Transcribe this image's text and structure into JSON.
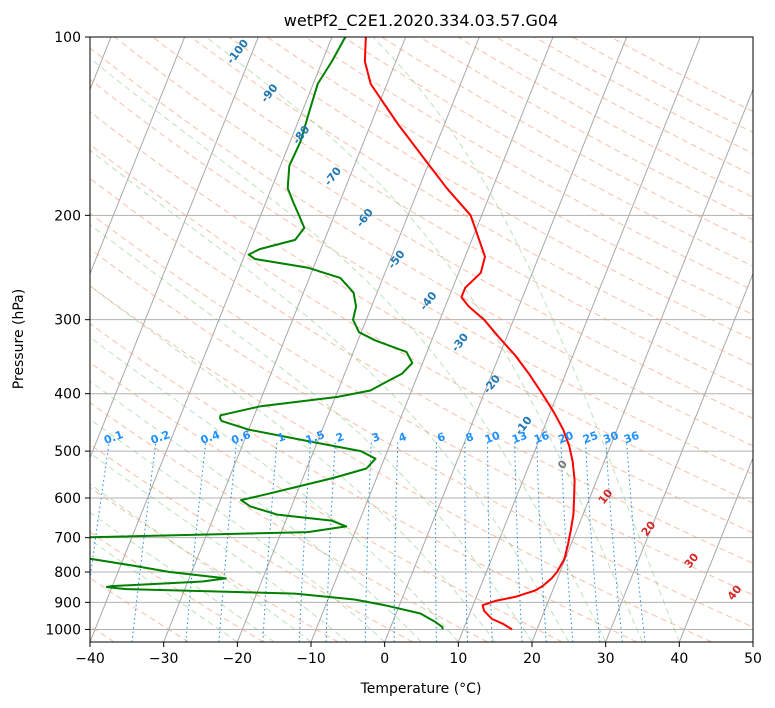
{
  "chart_data": {
    "type": "line",
    "title": "wetPf2_C2E1.2020.334.03.57.G04",
    "xlabel": "Temperature (°C)",
    "ylabel": "Pressure (hPa)",
    "xlim": [
      -40,
      50
    ],
    "ylim": [
      1050,
      100
    ],
    "y_scale": "log",
    "x_ticks": [
      -40,
      -30,
      -20,
      -10,
      0,
      10,
      20,
      30,
      40,
      50
    ],
    "x_tick_labels": [
      "−40",
      "−30",
      "−20",
      "−10",
      "0",
      "10",
      "20",
      "30",
      "40",
      "50"
    ],
    "y_ticks": [
      100,
      200,
      300,
      400,
      500,
      600,
      700,
      800,
      900,
      1000
    ],
    "y_tick_labels": [
      "100",
      "200",
      "300",
      "400",
      "500",
      "600",
      "700",
      "800",
      "900",
      "1000"
    ],
    "grid": true,
    "skew_t": true,
    "series": [
      {
        "name": "",
        "color": "#ff0000",
        "pressure": [
          1000,
          980,
          960,
          930,
          910,
          895,
          880,
          860,
          845,
          820,
          800,
          760,
          720,
          680,
          640,
          600,
          560,
          520,
          490,
          460,
          430,
          400,
          370,
          345,
          320,
          300,
          285,
          275,
          265,
          250,
          235,
          220,
          200,
          180,
          160,
          140,
          130,
          120,
          110,
          105,
          100
        ],
        "temperature": [
          16.6,
          15.2,
          13.3,
          11.8,
          11.3,
          12.8,
          15.4,
          17.6,
          18.4,
          19.2,
          19.6,
          19.9,
          19.6,
          19.2,
          18.7,
          17.9,
          17.0,
          15.7,
          14.4,
          12.7,
          10.5,
          7.9,
          5.0,
          2.2,
          -1.2,
          -4.0,
          -6.8,
          -8.3,
          -8.3,
          -7.0,
          -7.3,
          -9.0,
          -11.5,
          -16.2,
          -21.0,
          -26.4,
          -29.2,
          -32.2,
          -34.2,
          -34.8,
          -35.4
        ]
      },
      {
        "name": "",
        "color": "#008000",
        "pressure": [
          1000,
          990,
          970,
          940,
          910,
          890,
          870,
          860,
          855,
          850,
          848,
          845,
          830,
          820,
          800,
          780,
          760,
          740,
          720,
          700,
          685,
          670,
          655,
          640,
          620,
          605,
          590,
          575,
          555,
          535,
          515,
          500,
          480,
          460,
          445,
          440,
          435,
          420,
          405,
          395,
          385,
          370,
          355,
          340,
          325,
          315,
          300,
          285,
          270,
          255,
          245,
          237,
          233,
          228,
          220,
          210,
          200,
          190,
          180,
          165,
          150,
          135,
          120,
          110,
          100
        ],
        "dewpoint": [
          7.2,
          7.0,
          5.7,
          3.3,
          -2.0,
          -6.4,
          -14.8,
          -30.0,
          -38.0,
          -40.0,
          -40.7,
          -40.1,
          -28.0,
          -25.0,
          -33.0,
          -38.4,
          -44.5,
          -49.0,
          -51.0,
          -48.0,
          -16.4,
          -11.5,
          -13.8,
          -21.5,
          -25.6,
          -27.2,
          -23.8,
          -20.5,
          -15.9,
          -11.9,
          -11.2,
          -13.6,
          -21.7,
          -30.0,
          -34.1,
          -34.5,
          -34.6,
          -29.6,
          -19.7,
          -15.6,
          -14.3,
          -12.2,
          -11.4,
          -12.8,
          -17.7,
          -20.3,
          -21.8,
          -22.1,
          -23.2,
          -25.8,
          -30.8,
          -38.4,
          -39.5,
          -38.3,
          -34.0,
          -33.4,
          -34.8,
          -36.3,
          -37.8,
          -38.8,
          -38.6,
          -39.0,
          -39.4,
          -38.7,
          -38.2
        ]
      }
    ],
    "dry_adiabat_labels": [
      "-100",
      "-90",
      "-80",
      "-70",
      "-60",
      "-50",
      "-40",
      "-30",
      "-20",
      "-10",
      "0",
      "10",
      "20",
      "30",
      "40"
    ],
    "mixing_ratio_labels": [
      "0.1",
      "0.2",
      "0.4",
      "0.6",
      "1",
      "1.5",
      "2",
      "3",
      "4",
      "6",
      "8",
      "10",
      "13",
      "16",
      "20",
      "25",
      "30",
      "36"
    ]
  }
}
